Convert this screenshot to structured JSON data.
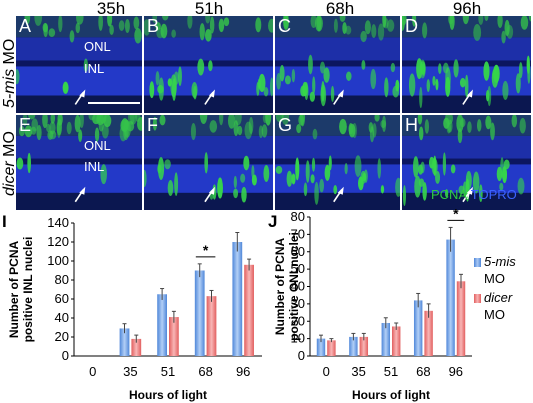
{
  "columns": [
    "35h",
    "51h",
    "68h",
    "96h"
  ],
  "rows": [
    {
      "label_italic": "5-mis",
      "label_rest": " MO"
    },
    {
      "label_italic": "dicer",
      "label_rest": " MO"
    }
  ],
  "panels": [
    "A",
    "B",
    "C",
    "D",
    "E",
    "F",
    "G",
    "H"
  ],
  "layer_labels": {
    "onl": "ONL",
    "inl": "INL"
  },
  "stain": {
    "pcna": "PCNA",
    "sep": "/",
    "topro": "TOPRO"
  },
  "colors": {
    "series_a": "#6fa1e8",
    "series_b": "#ef7f7f",
    "pcna": "#2ecc40",
    "topro": "#3b63ff"
  },
  "chart_data": [
    {
      "panel": "I",
      "type": "bar",
      "xlabel": "Hours of light",
      "ylabel": [
        "Number of PCNA",
        "positive INL nuclei"
      ],
      "categories": [
        "0",
        "35",
        "51",
        "68",
        "96"
      ],
      "ylim": [
        0,
        140
      ],
      "yticks": [
        0,
        20,
        40,
        60,
        80,
        100,
        120,
        140
      ],
      "series": [
        {
          "values": [
            0,
            29,
            65,
            90,
            120
          ],
          "errors": [
            0,
            5,
            6,
            7,
            10
          ]
        },
        {
          "values": [
            0,
            18,
            41,
            63,
            96
          ],
          "errors": [
            0,
            4,
            6,
            6,
            6
          ]
        }
      ],
      "significance": {
        "between": [
          "68"
        ],
        "mark": "*"
      }
    },
    {
      "panel": "J",
      "type": "bar",
      "xlabel": "Hours of light",
      "ylabel": [
        "Number of PCNA",
        "positive ONLnuclei"
      ],
      "categories": [
        "0",
        "35",
        "51",
        "68",
        "96"
      ],
      "ylim": [
        0,
        80
      ],
      "yticks": [
        0,
        10,
        20,
        30,
        40,
        50,
        60,
        70,
        80
      ],
      "series": [
        {
          "values": [
            10,
            11,
            19,
            32,
            67
          ],
          "errors": [
            2,
            2,
            3,
            4,
            7
          ]
        },
        {
          "values": [
            9,
            11,
            17,
            26,
            43
          ],
          "errors": [
            1,
            2,
            2,
            4,
            4
          ]
        }
      ],
      "significance": {
        "between": [
          "96"
        ],
        "mark": "*"
      },
      "legend": [
        {
          "italic": "5-mis",
          "rest": "MO"
        },
        {
          "italic": "dicer",
          "rest": "MO"
        }
      ]
    }
  ]
}
